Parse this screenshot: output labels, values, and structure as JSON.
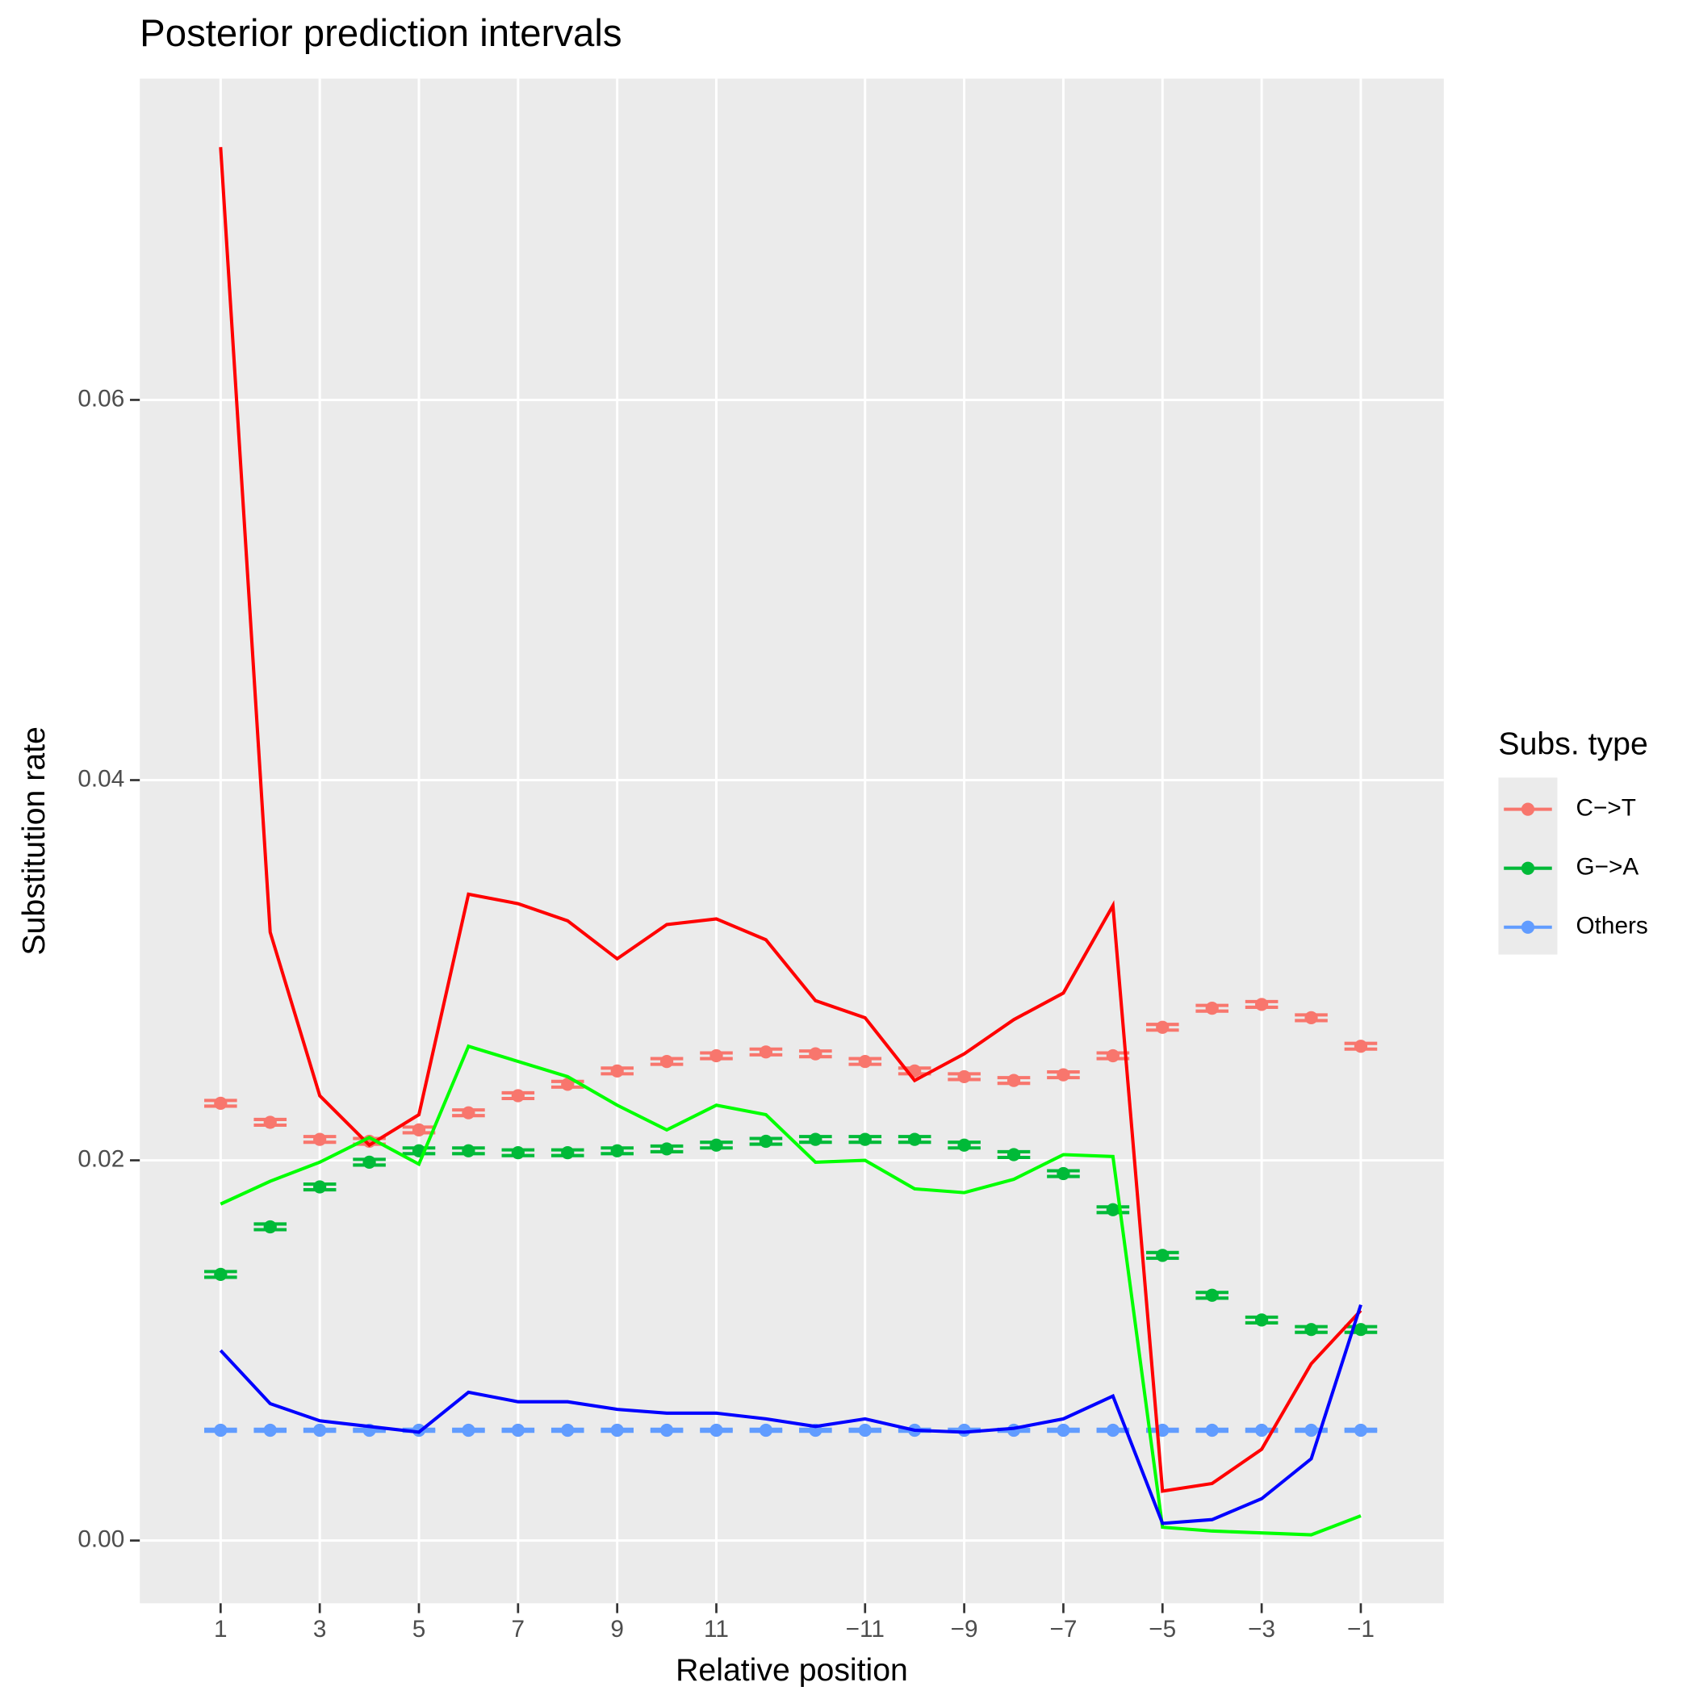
{
  "chart_data": {
    "type": "line",
    "title": "Posterior prediction intervals",
    "x_label": "Relative position",
    "y_label": "Substitution rate",
    "legend_title": "Subs. type",
    "legend_position": "right",
    "grid": true,
    "categories": [
      "1",
      null,
      "3",
      null,
      "5",
      null,
      "7",
      null,
      "9",
      null,
      "11",
      null,
      null,
      "−11",
      null,
      "−9",
      null,
      "−7",
      null,
      "−5",
      null,
      "−3",
      null,
      "−1"
    ],
    "ylim": [
      -0.0033,
      0.0769
    ],
    "yticks": [
      {
        "value": 0,
        "label": "0.00"
      },
      {
        "value": 0.02,
        "label": "0.02"
      },
      {
        "value": 0.04,
        "label": "0.04"
      },
      {
        "value": 0.06,
        "label": "0.06"
      }
    ],
    "series": [
      {
        "name": "C−>T",
        "color": "#F8766D",
        "markers": true,
        "values": [
          0.023,
          0.022,
          0.0211,
          0.021,
          0.0216,
          0.0225,
          0.0234,
          0.024,
          0.0247,
          0.0252,
          0.0255,
          0.0257,
          0.0256,
          0.0252,
          0.0247,
          0.0244,
          0.0242,
          0.0245,
          0.0255,
          0.027,
          0.028,
          0.0282,
          0.0275,
          0.026
        ],
        "error": [
          0.00015,
          0.00015,
          0.00015,
          0.00015,
          0.00015,
          0.00015,
          0.00015,
          0.00015,
          0.00015,
          0.00015,
          0.00015,
          0.00015,
          0.00015,
          0.00015,
          0.00015,
          0.00015,
          0.00015,
          0.00015,
          0.00015,
          0.00015,
          0.00015,
          0.00015,
          0.00015,
          0.00015
        ]
      },
      {
        "name": "G−>A",
        "color": "#00BA38",
        "markers": true,
        "values": [
          0.014,
          0.0165,
          0.0186,
          0.0199,
          0.0205,
          0.0205,
          0.0204,
          0.0204,
          0.0205,
          0.0206,
          0.0208,
          0.021,
          0.0211,
          0.0211,
          0.0211,
          0.0208,
          0.0203,
          0.0193,
          0.0174,
          0.015,
          0.0129,
          0.0116,
          0.0111,
          0.0111
        ],
        "error": [
          0.00015,
          0.00015,
          0.00015,
          0.00015,
          0.00015,
          0.00015,
          0.00015,
          0.00015,
          0.00015,
          0.00015,
          0.00015,
          0.00015,
          0.00015,
          0.00015,
          0.00015,
          0.00015,
          0.00015,
          0.00015,
          0.00015,
          0.00015,
          0.00015,
          0.00015,
          0.00015,
          0.00015
        ]
      },
      {
        "name": "Others",
        "color": "#619CFF",
        "markers": true,
        "values": [
          0.0058,
          0.0058,
          0.0058,
          0.0058,
          0.0058,
          0.0058,
          0.0058,
          0.0058,
          0.0058,
          0.0058,
          0.0058,
          0.0058,
          0.0058,
          0.0058,
          0.0058,
          0.0058,
          0.0058,
          0.0058,
          0.0058,
          0.0058,
          0.0058,
          0.0058,
          0.0058,
          0.0058
        ],
        "error": [
          5e-05,
          5e-05,
          5e-05,
          5e-05,
          5e-05,
          5e-05,
          5e-05,
          5e-05,
          5e-05,
          5e-05,
          5e-05,
          5e-05,
          5e-05,
          5e-05,
          5e-05,
          5e-05,
          5e-05,
          5e-05,
          5e-05,
          5e-05,
          5e-05,
          5e-05,
          5e-05,
          5e-05
        ]
      },
      {
        "color": "#FF0000",
        "values": [
          0.0733,
          0.032,
          0.0234,
          0.0208,
          0.0224,
          0.034,
          0.0335,
          0.0326,
          0.0306,
          0.0324,
          0.0327,
          0.0316,
          0.0284,
          0.0275,
          0.0242,
          0.0256,
          0.0274,
          0.0288,
          0.0334,
          0.0026,
          0.003,
          0.0048,
          0.0093,
          0.0121
        ]
      },
      {
        "color": "#00FF00",
        "values": [
          0.0177,
          0.0189,
          0.0199,
          0.0212,
          0.0198,
          0.026,
          0.0252,
          0.0244,
          0.0229,
          0.0216,
          0.0229,
          0.0224,
          0.0199,
          0.02,
          0.0185,
          0.0183,
          0.019,
          0.0203,
          0.0202,
          0.0007,
          0.0005,
          0.0004,
          0.0003,
          0.0013
        ]
      },
      {
        "color": "#0000FF",
        "values": [
          0.01,
          0.0072,
          0.0063,
          0.006,
          0.0057,
          0.0078,
          0.0073,
          0.0073,
          0.0069,
          0.0067,
          0.0067,
          0.0064,
          0.006,
          0.0064,
          0.0058,
          0.0057,
          0.0059,
          0.0064,
          0.0076,
          0.0009,
          0.0011,
          0.0022,
          0.0043,
          0.0124
        ]
      }
    ]
  }
}
